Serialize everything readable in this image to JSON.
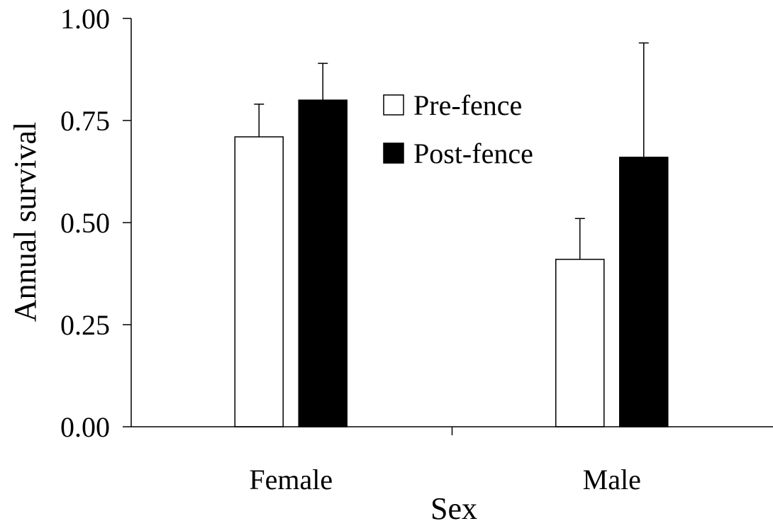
{
  "chart_data": {
    "type": "bar",
    "categories": [
      "Female",
      "Male"
    ],
    "series": [
      {
        "name": "Pre-fence",
        "values": [
          0.71,
          0.41
        ],
        "error_upper": [
          0.79,
          0.51
        ],
        "fill": "#ffffff",
        "stroke": "#000000"
      },
      {
        "name": "Post-fence",
        "values": [
          0.8,
          0.66
        ],
        "error_upper": [
          0.89,
          0.94
        ],
        "fill": "#000000",
        "stroke": "#000000"
      }
    ],
    "xlabel": "Sex",
    "ylabel": "Annual survival",
    "ylim": [
      0,
      1.0
    ],
    "yticks": [
      0.0,
      0.25,
      0.5,
      0.75,
      1.0
    ],
    "ytick_labels": [
      "0.00",
      "0.25",
      "0.50",
      "0.75",
      "1.00"
    ],
    "legend_position": "top-center",
    "grid": false
  }
}
